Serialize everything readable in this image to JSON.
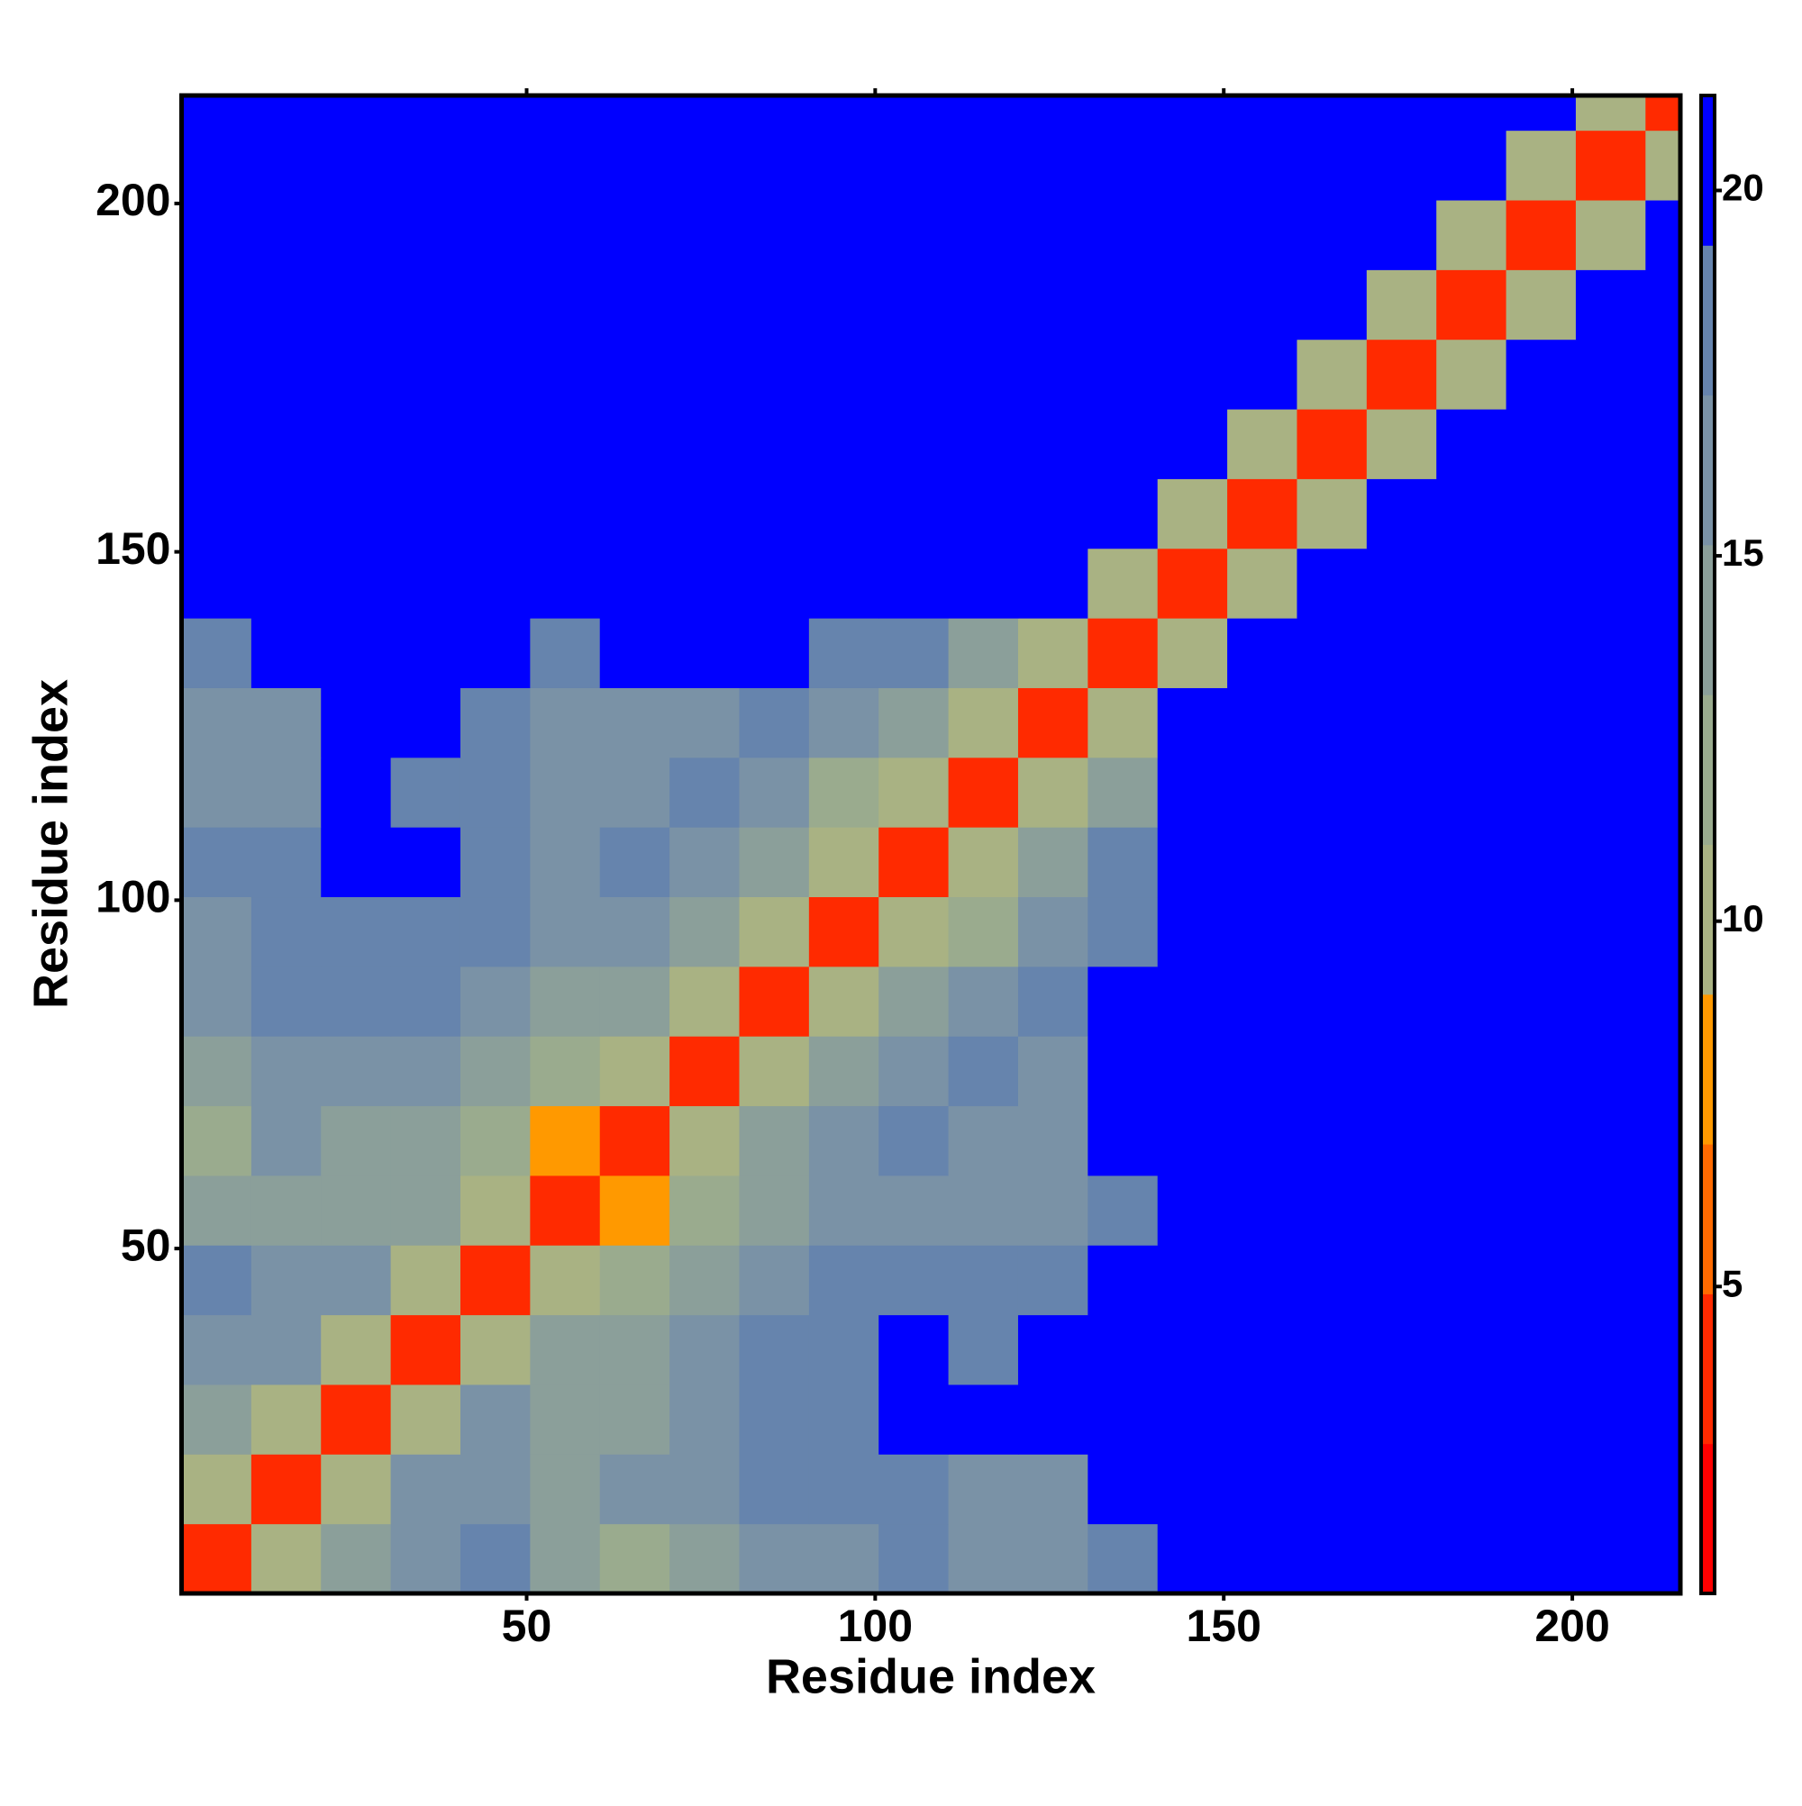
{
  "chart_data": {
    "type": "heatmap",
    "xlabel": "Residue index",
    "ylabel": "Residue index",
    "xbins": [
      0.5,
      10.5,
      20.5,
      30.5,
      40.5,
      50.5,
      60.5,
      70.5,
      80.5,
      90.5,
      100.5,
      110.5,
      120.5,
      130.5,
      140.5,
      150.5,
      160.5,
      170.5,
      180.5,
      190.5,
      200.5,
      210.5,
      215.5
    ],
    "ybins": [
      0.5,
      10.5,
      20.5,
      30.5,
      40.5,
      50.5,
      60.5,
      70.5,
      80.5,
      90.5,
      100.5,
      110.5,
      120.5,
      130.5,
      140.5,
      150.5,
      160.5,
      170.5,
      180.5,
      190.5,
      200.5,
      210.5,
      215.5
    ],
    "z": [
      [
        4,
        10,
        14,
        16,
        18,
        15,
        13,
        15,
        16,
        17,
        18,
        17,
        16,
        19,
        21,
        21,
        21,
        21,
        21,
        21,
        21,
        21
      ],
      [
        10,
        4,
        11,
        16,
        17,
        15,
        16,
        16,
        18,
        19,
        19,
        16,
        17,
        21,
        21,
        21,
        21,
        21,
        21,
        21,
        21,
        21
      ],
      [
        14,
        11,
        4,
        11,
        16,
        15,
        14,
        17,
        19,
        19,
        20,
        20,
        20,
        21,
        21,
        21,
        21,
        21,
        21,
        21,
        21,
        21
      ],
      [
        16,
        16,
        11,
        4,
        11,
        14,
        15,
        17,
        18,
        19,
        20,
        19,
        21,
        21,
        21,
        21,
        21,
        21,
        21,
        21,
        21,
        21
      ],
      [
        18,
        17,
        16,
        11,
        4,
        10,
        13,
        15,
        16,
        19,
        18,
        19,
        19,
        21,
        21,
        21,
        21,
        21,
        21,
        21,
        21,
        21
      ],
      [
        15,
        15,
        15,
        14,
        10,
        4,
        9,
        12,
        14,
        16,
        17,
        16,
        16,
        19,
        21,
        21,
        21,
        21,
        21,
        21,
        21,
        21
      ],
      [
        13,
        16,
        14,
        15,
        13,
        9,
        4,
        10,
        14,
        17,
        18,
        17,
        17,
        20,
        21,
        21,
        21,
        21,
        21,
        21,
        21,
        21
      ],
      [
        15,
        16,
        17,
        17,
        15,
        12,
        10,
        4,
        11,
        15,
        17,
        18,
        17,
        20,
        21,
        21,
        21,
        21,
        21,
        21,
        21,
        21
      ],
      [
        16,
        18,
        19,
        18,
        16,
        14,
        14,
        11,
        4,
        11,
        14,
        17,
        18,
        20,
        21,
        21,
        21,
        21,
        21,
        21,
        21,
        21
      ],
      [
        17,
        19,
        19,
        19,
        19,
        16,
        17,
        15,
        11,
        4,
        11,
        13,
        16,
        19,
        21,
        21,
        21,
        21,
        21,
        21,
        21,
        21
      ],
      [
        18,
        19,
        20,
        20,
        18,
        17,
        18,
        17,
        14,
        11,
        4,
        11,
        14,
        18,
        21,
        21,
        21,
        21,
        21,
        21,
        21,
        21
      ],
      [
        17,
        16,
        20,
        19,
        19,
        16,
        17,
        18,
        17,
        13,
        11,
        4,
        11,
        15,
        21,
        21,
        21,
        21,
        21,
        21,
        21,
        21
      ],
      [
        16,
        17,
        20,
        21,
        19,
        16,
        17,
        17,
        18,
        16,
        14,
        11,
        4,
        11,
        21,
        21,
        21,
        21,
        21,
        21,
        21,
        21
      ],
      [
        19,
        21,
        21,
        21,
        21,
        19,
        20,
        20,
        20,
        19,
        18,
        15,
        11,
        4,
        11,
        21,
        21,
        21,
        21,
        21,
        21,
        21
      ],
      [
        21,
        21,
        21,
        21,
        21,
        21,
        21,
        21,
        21,
        21,
        21,
        21,
        21,
        11,
        4,
        11,
        21,
        21,
        21,
        21,
        21,
        21
      ],
      [
        21,
        21,
        21,
        21,
        21,
        21,
        21,
        21,
        21,
        21,
        21,
        21,
        21,
        21,
        11,
        4,
        11,
        21,
        21,
        21,
        21,
        21
      ],
      [
        21,
        21,
        21,
        21,
        21,
        21,
        21,
        21,
        21,
        21,
        21,
        21,
        21,
        21,
        21,
        11,
        4,
        11,
        21,
        21,
        21,
        21
      ],
      [
        21,
        21,
        21,
        21,
        21,
        21,
        21,
        21,
        21,
        21,
        21,
        21,
        21,
        21,
        21,
        21,
        11,
        4,
        11,
        21,
        21,
        21
      ],
      [
        21,
        21,
        21,
        21,
        21,
        21,
        21,
        21,
        21,
        21,
        21,
        21,
        21,
        21,
        21,
        21,
        21,
        11,
        4,
        11,
        21,
        21
      ],
      [
        21,
        21,
        21,
        21,
        21,
        21,
        21,
        21,
        21,
        21,
        21,
        21,
        21,
        21,
        21,
        21,
        21,
        21,
        11,
        4,
        11,
        21
      ],
      [
        21,
        21,
        21,
        21,
        21,
        21,
        21,
        21,
        21,
        21,
        21,
        21,
        21,
        21,
        21,
        21,
        21,
        21,
        21,
        11,
        4,
        11
      ],
      [
        21,
        21,
        21,
        21,
        21,
        21,
        21,
        21,
        21,
        21,
        21,
        21,
        21,
        21,
        21,
        21,
        21,
        21,
        21,
        21,
        11,
        4
      ]
    ],
    "xlim": [
      0.5,
      215.5
    ],
    "ylim": [
      0.5,
      215.5
    ],
    "xticks": [
      50,
      100,
      150,
      200
    ],
    "yticks": [
      50,
      100,
      150,
      200
    ],
    "clim": [
      0.8,
      21.3
    ],
    "cticks": [
      5,
      10,
      15,
      20
    ],
    "colorscale": [
      "#ff0000",
      "#ff2a00",
      "#ff6a00",
      "#ff9900",
      "#a9b283",
      "#9aab8e",
      "#8b9f9a",
      "#7a92a6",
      "#6684ad",
      "#0000ff"
    ]
  }
}
